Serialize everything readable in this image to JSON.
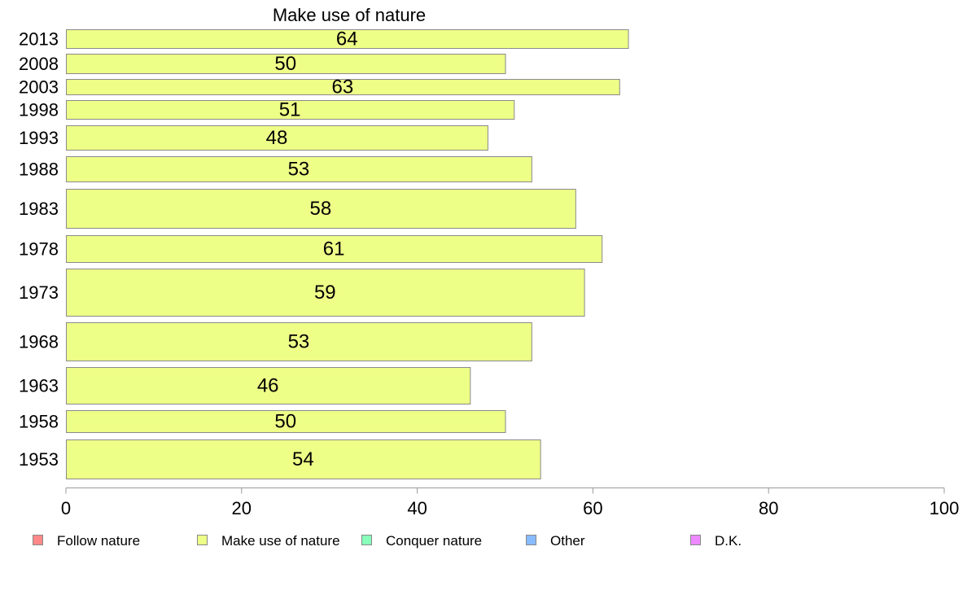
{
  "chart_data": {
    "type": "bar",
    "orientation": "horizontal",
    "title": "Make use of nature",
    "categories": [
      "2013",
      "2008",
      "2003",
      "1998",
      "1993",
      "1988",
      "1983",
      "1978",
      "1973",
      "1968",
      "1963",
      "1958",
      "1953"
    ],
    "series": [
      {
        "name": "Make use of nature",
        "values": [
          64,
          50,
          63,
          51,
          48,
          53,
          58,
          61,
          59,
          53,
          46,
          50,
          54
        ],
        "color": "#eeff88"
      }
    ],
    "xlim": [
      0,
      100
    ],
    "xticks": [
      0,
      20,
      40,
      60,
      80,
      100
    ],
    "grid": false,
    "legend": {
      "position": "bottom",
      "entries": [
        {
          "label": "Follow nature",
          "color": "#ff8888"
        },
        {
          "label": "Make use of nature",
          "color": "#eeff88"
        },
        {
          "label": "Conquer nature",
          "color": "#88ffbb"
        },
        {
          "label": "Other",
          "color": "#88bbff"
        },
        {
          "label": "D.K.",
          "color": "#ee88ff"
        }
      ]
    }
  }
}
